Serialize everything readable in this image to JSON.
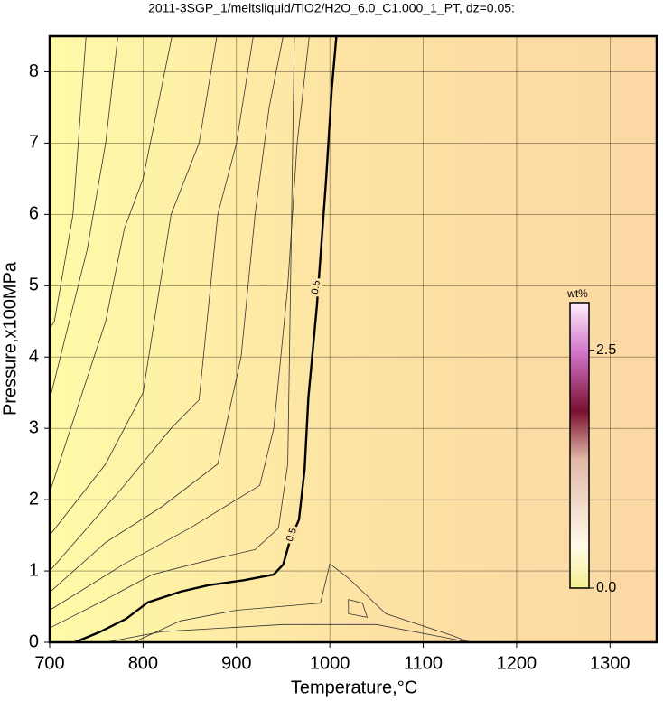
{
  "chart_data": {
    "type": "contour",
    "title": "2011-3SGP_1/meltsliquid/TiO2/H2O_6.0_C1.000_1_PT, dz=0.05:",
    "x_label": "Temperature,°C",
    "y_label": "Pressure,x100MPa",
    "xlim": [
      700,
      1350
    ],
    "ylim": [
      0,
      8.5
    ],
    "xticks": [
      700,
      800,
      900,
      1000,
      1100,
      1200,
      1300
    ],
    "yticks": [
      0,
      1,
      2,
      3,
      4,
      5,
      6,
      7,
      8
    ],
    "grid": true,
    "colorbar": {
      "label": "wt%",
      "clim": [
        0,
        3.0
      ],
      "ticks": [
        {
          "value": 0,
          "label": "0.0"
        },
        2.5
      ]
    },
    "series": [
      {
        "level": 0.5,
        "label": "0.5",
        "x": [
          727,
          753,
          782,
          805,
          840,
          870,
          908,
          940,
          950,
          957,
          967,
          973,
          977,
          986,
          996,
          1002,
          1007
        ],
        "y": [
          0,
          0.14,
          0.33,
          0.56,
          0.71,
          0.8,
          0.87,
          0.95,
          1.09,
          1.41,
          1.72,
          2.42,
          3.43,
          4.7,
          6.48,
          7.74,
          8.5
        ]
      }
    ],
    "contours": [
      {
        "x": [
          739,
          725,
          705,
          700
        ],
        "y": [
          8.5,
          6.0,
          4.5,
          4.4
        ]
      },
      {
        "x": [
          773,
          760,
          740,
          700
        ],
        "y": [
          8.5,
          7.0,
          5.5,
          3.4
        ]
      },
      {
        "x": [
          831,
          800,
          780,
          760,
          700
        ],
        "y": [
          8.5,
          6.5,
          5.8,
          4.5,
          2.1
        ]
      },
      {
        "x": [
          879,
          860,
          830,
          800,
          760,
          700
        ],
        "y": [
          8.5,
          7.0,
          6.0,
          3.5,
          2.5,
          1.5
        ]
      },
      {
        "x": [
          918,
          900,
          880,
          860,
          830,
          780,
          700
        ],
        "y": [
          8.5,
          7.0,
          6.0,
          3.4,
          3.0,
          2.2,
          1.0
        ]
      },
      {
        "x": [
          950,
          935,
          920,
          905,
          880,
          820,
          760,
          700
        ],
        "y": [
          8.5,
          7.5,
          6.0,
          4.0,
          2.5,
          1.9,
          1.4,
          0.7
        ]
      },
      {
        "x": [
          978,
          965,
          955,
          940,
          925,
          850,
          780,
          700
        ],
        "y": [
          8.5,
          7.0,
          5.0,
          3.0,
          2.2,
          1.6,
          1.1,
          0.45
        ]
      },
      {
        "x": [
          700,
          760,
          810,
          870,
          920,
          945,
          955,
          962
        ],
        "y": [
          0.2,
          0.6,
          0.95,
          1.15,
          1.3,
          1.6,
          2.5,
          8.5
        ]
      },
      {
        "x": [
          760,
          820,
          950,
          1050,
          1150
        ],
        "y": [
          0,
          0.15,
          0.25,
          0.25,
          0
        ]
      },
      {
        "x": [
          790,
          840,
          900,
          990,
          1000,
          1020,
          1060,
          1130,
          1150
        ],
        "y": [
          0,
          0.3,
          0.45,
          0.55,
          1.1,
          0.9,
          0.4,
          0.1,
          0
        ]
      },
      {
        "x": [
          1020,
          1040,
          1035,
          1020,
          1020
        ],
        "y": [
          0.4,
          0.35,
          0.55,
          0.6,
          0.4
        ]
      }
    ]
  }
}
